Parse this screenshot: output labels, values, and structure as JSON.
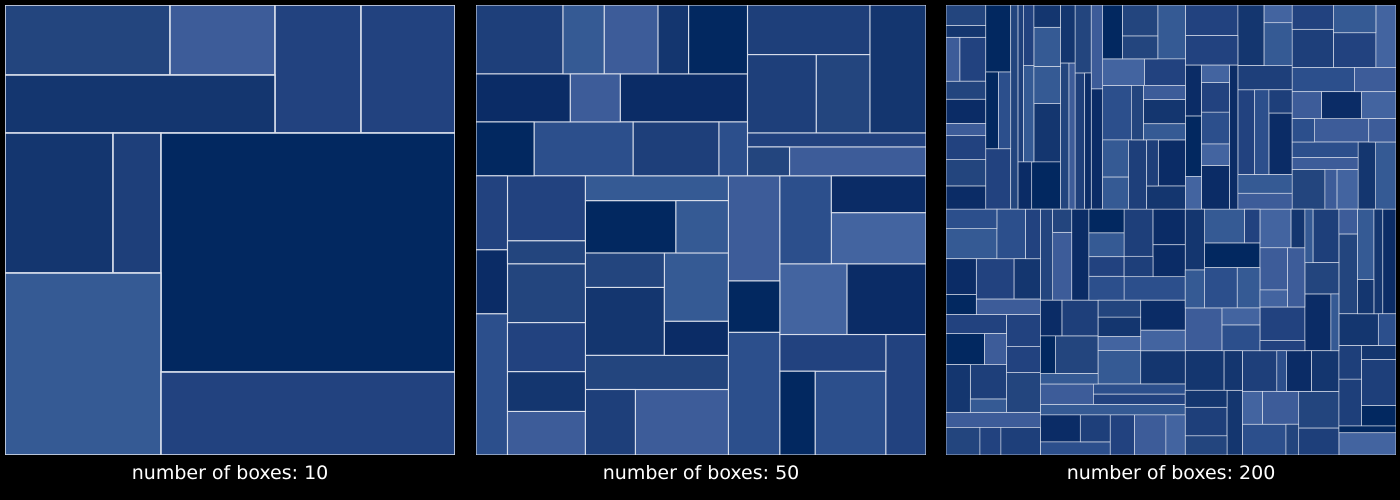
{
  "panels": [
    {
      "caption": "number of boxes: 10",
      "boxes": 10
    },
    {
      "caption": "number of boxes: 50",
      "boxes": 50
    },
    {
      "caption": "number of boxes: 200",
      "boxes": 200
    }
  ],
  "colors": {
    "background": "#000000",
    "border": "#d8deeb",
    "palette": [
      "#022860",
      "#0b2c66",
      "#14366f",
      "#1e3f7a",
      "#22427f",
      "#23457e",
      "#2c4f8c",
      "#355a94",
      "#3d5c99",
      "#4364a0"
    ]
  }
}
